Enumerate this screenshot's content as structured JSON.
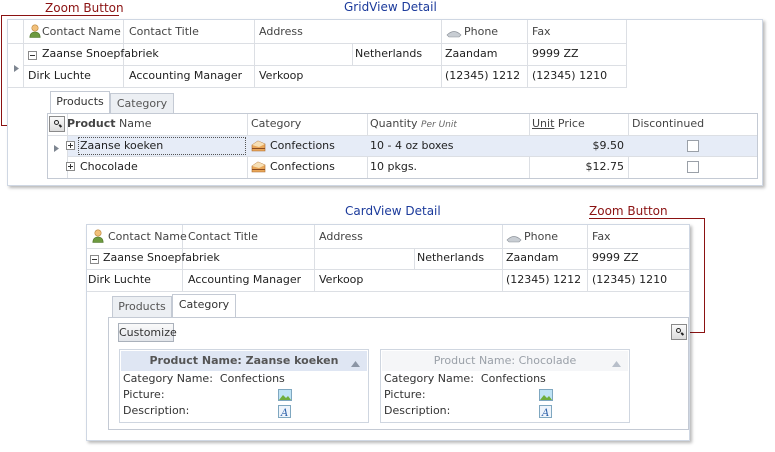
{
  "callouts": {
    "grid_zoom_label": "Zoom Button",
    "card_zoom_label": "Zoom Button"
  },
  "titles": {
    "gridview": "GridView Detail",
    "cardview": "CardView Detail"
  },
  "master": {
    "headers": [
      "Contact Name",
      "Contact Title",
      "Address",
      "Phone",
      "Fax"
    ],
    "row1": {
      "company": "Zaanse Snoepfabriek",
      "country": "Netherlands",
      "city": "Zaandam",
      "postal": "9999 ZZ"
    },
    "row2": {
      "contact_name": "Dirk Luchte",
      "contact_title": "Accounting Manager",
      "address": "Verkoop",
      "phone": "(12345) 1212",
      "fax": "(12345) 1210"
    }
  },
  "grid_detail": {
    "tabs": [
      "Products",
      "Category"
    ],
    "headers": {
      "product_bold": "Product",
      "product_rest": "Name",
      "category": "Category",
      "quantity": "Quantity",
      "quantity_unit": "Per Unit",
      "price_unit": "Unit",
      "price_rest": "Price",
      "discontinued": "Discontinued"
    },
    "rows": [
      {
        "name": "Zaanse koeken",
        "category": "Confections",
        "quantity": "10 - 4 oz boxes",
        "price": "$9.50"
      },
      {
        "name": "Chocolade",
        "category": "Confections",
        "quantity": "10 pkgs.",
        "price": "$12.75"
      }
    ]
  },
  "card_detail": {
    "tabs": [
      "Products",
      "Category"
    ],
    "customize": "Customize",
    "cards": [
      {
        "title": "Product Name: Zaanse koeken",
        "category_label": "Category Name:",
        "category_value": "Confections",
        "picture_label": "Picture:",
        "description_label": "Description:"
      },
      {
        "title": "Product Name: Chocolade",
        "category_label": "Category Name:",
        "category_value": "Confections",
        "picture_label": "Picture:",
        "description_label": "Description:"
      }
    ]
  },
  "colors": {
    "callout": "#8b1212",
    "title": "#1b3a9b",
    "focused_row": "#e6ecf7",
    "card_focused_head": "#dfe6f3"
  }
}
